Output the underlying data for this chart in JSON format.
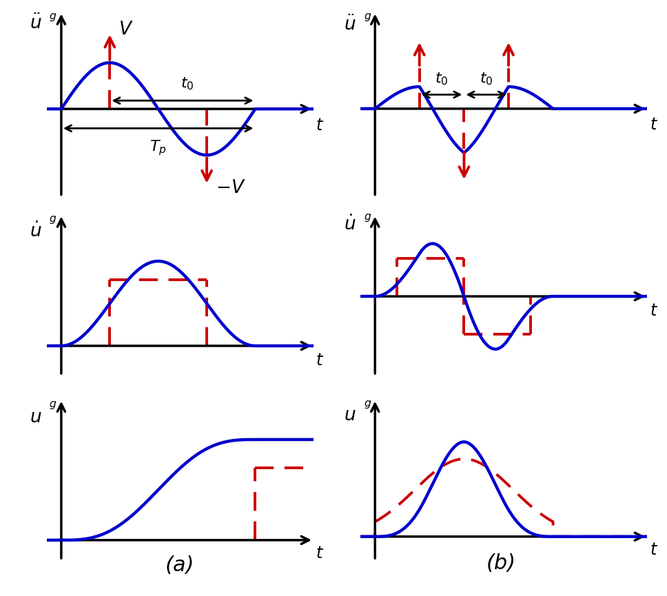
{
  "bg_color": "#ffffff",
  "blue_color": "#0000cc",
  "red_color": "#cc0000",
  "blue_lw": 3.2,
  "red_lw": 2.8,
  "axis_lw": 2.5,
  "label_fontsize": 17,
  "annot_fontsize": 16,
  "caption_fontsize": 22,
  "arrow_ms": 20
}
